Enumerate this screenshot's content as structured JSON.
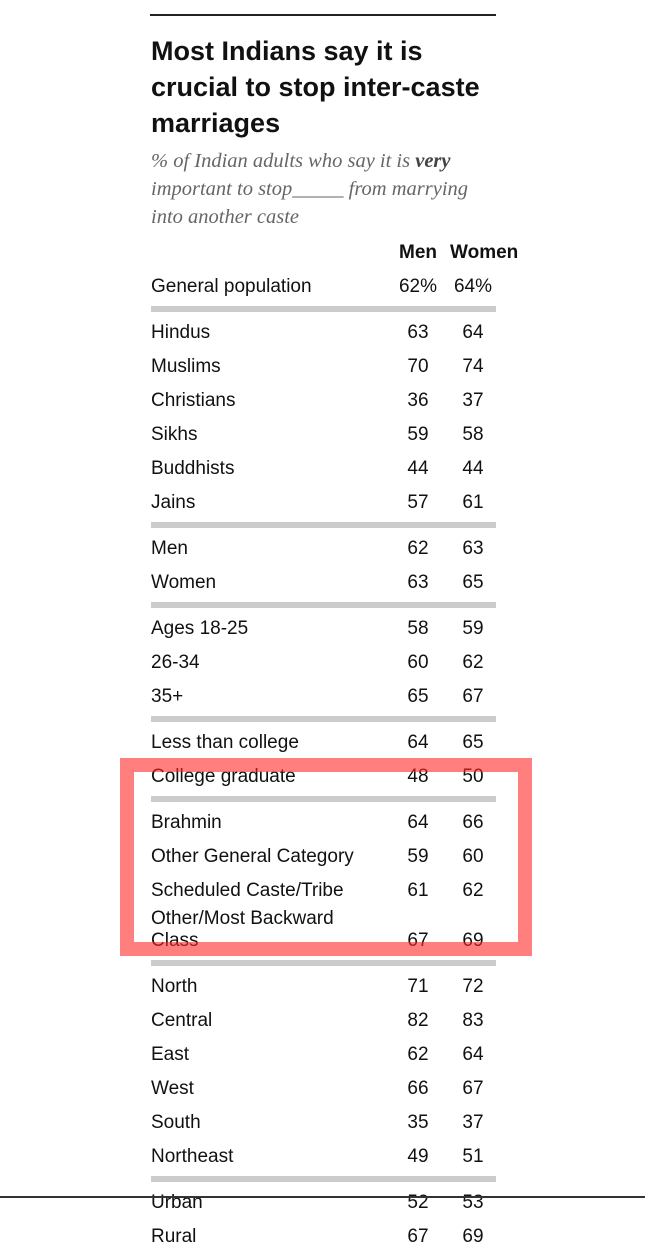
{
  "header": {
    "title": "Most Indians say it is crucial to stop inter-caste marriages",
    "subtitle": {
      "before": "% of Indian adults who say it is",
      "emphasis": "very",
      "middle": "important to stop",
      "blank": "_____",
      "after": "from marrying into another caste"
    }
  },
  "table": {
    "columns": [
      "Men",
      "Women"
    ],
    "general": [
      "General population",
      "62%",
      "64%"
    ],
    "groups": [
      [
        [
          "Hindus",
          63,
          64
        ],
        [
          "Muslims",
          70,
          74
        ],
        [
          "Christians",
          36,
          37
        ],
        [
          "Sikhs",
          59,
          58
        ],
        [
          "Buddhists",
          44,
          44
        ],
        [
          "Jains",
          57,
          61
        ]
      ],
      [
        [
          "Men",
          62,
          63
        ],
        [
          "Women",
          63,
          65
        ]
      ],
      [
        [
          "Ages 18-25",
          58,
          59
        ],
        [
          "26-34",
          60,
          62
        ],
        [
          "35+",
          65,
          67
        ]
      ],
      [
        [
          "Less than college",
          64,
          65
        ],
        [
          "College graduate",
          48,
          50
        ]
      ],
      [
        [
          "Brahmin",
          64,
          66
        ],
        [
          "Other General Category",
          59,
          60
        ],
        [
          "Scheduled Caste/Tribe",
          61,
          62
        ],
        [
          "Other/Most Backward Class",
          67,
          69
        ]
      ],
      [
        [
          "North",
          71,
          72
        ],
        [
          "Central",
          82,
          83
        ],
        [
          "East",
          62,
          64
        ],
        [
          "West",
          66,
          67
        ],
        [
          "South",
          35,
          37
        ],
        [
          "Northeast",
          49,
          51
        ]
      ],
      [
        [
          "Urban",
          52,
          53
        ],
        [
          "Rural",
          67,
          69
        ]
      ]
    ]
  }
}
